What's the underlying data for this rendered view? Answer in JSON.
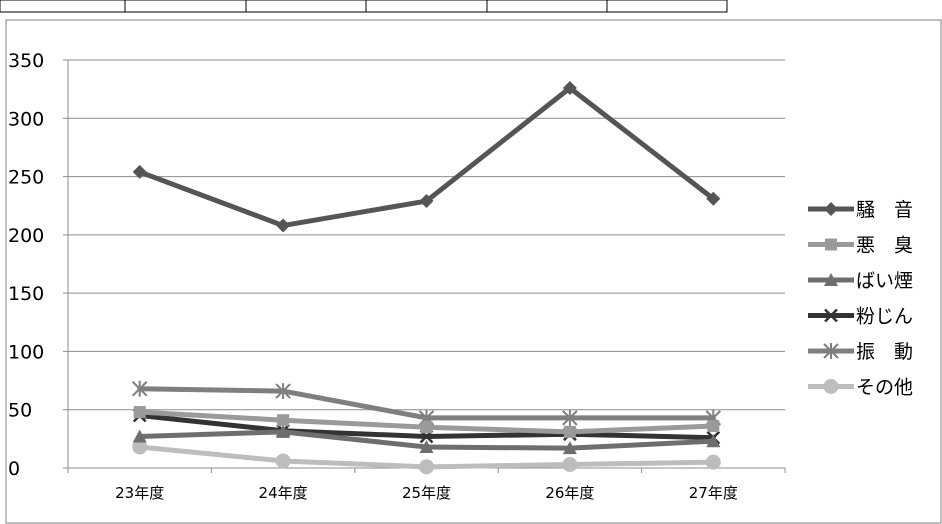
{
  "chart_data": {
    "type": "line",
    "title": "",
    "xlabel": "",
    "ylabel": "",
    "categories": [
      "23年度",
      "24年度",
      "25年度",
      "26年度",
      "27年度"
    ],
    "ylim": [
      0,
      350
    ],
    "yticks": [
      0,
      50,
      100,
      150,
      200,
      250,
      300,
      350
    ],
    "grid": true,
    "legend_position": "right",
    "series": [
      {
        "name": "騒　音",
        "values": [
          254,
          208,
          229,
          326,
          231
        ],
        "color": "#555555",
        "marker": "diamond"
      },
      {
        "name": "悪　臭",
        "values": [
          48,
          41,
          35,
          31,
          36
        ],
        "color": "#9a9a9a",
        "marker": "square"
      },
      {
        "name": "ばい煙",
        "values": [
          27,
          31,
          18,
          17,
          23
        ],
        "color": "#6e6e6e",
        "marker": "triangle"
      },
      {
        "name": "粉じん",
        "values": [
          45,
          32,
          27,
          29,
          26
        ],
        "color": "#333333",
        "marker": "x"
      },
      {
        "name": "振　動",
        "values": [
          68,
          66,
          43,
          43,
          43
        ],
        "color": "#7f7f7f",
        "marker": "star"
      },
      {
        "name": "その他",
        "values": [
          18,
          6,
          1,
          3,
          5
        ],
        "color": "#bdbdbd",
        "marker": "circle"
      }
    ]
  }
}
